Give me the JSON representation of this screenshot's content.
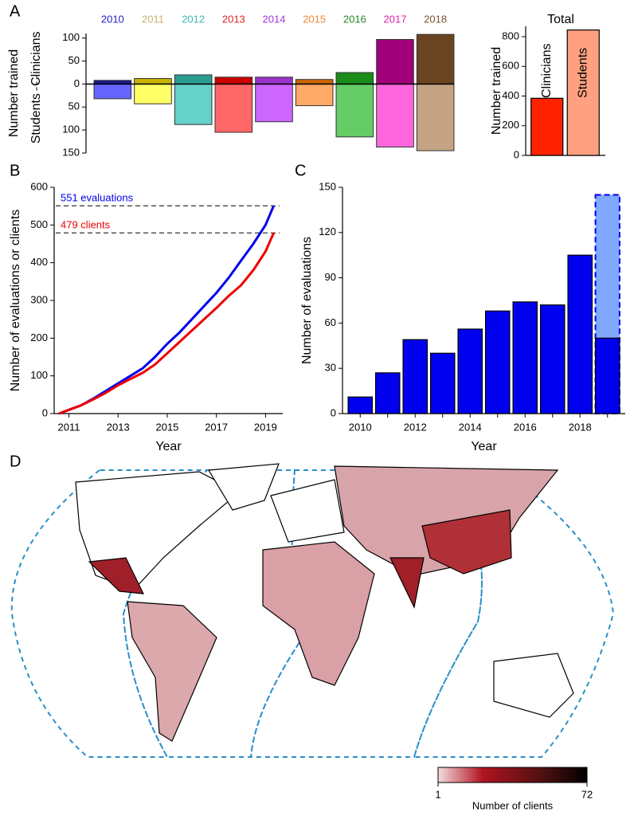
{
  "chart_data": [
    {
      "panel": "A",
      "type": "diverging_bar",
      "categories": [
        "2010",
        "2011",
        "2012",
        "2013",
        "2014",
        "2015",
        "2016",
        "2017",
        "2018"
      ],
      "label_colors": [
        "#2222cc",
        "#c8b070",
        "#3cb8b0",
        "#dd2222",
        "#aa33dd",
        "#ee8833",
        "#228822",
        "#dd22aa",
        "#7b5533"
      ],
      "series": [
        {
          "name": "Clinicians",
          "colors": [
            "#1a1a8c",
            "#c8b400",
            "#2a9d8f",
            "#cc0000",
            "#9933cc",
            "#cc6600",
            "#1a8c1a",
            "#a0007a",
            "#6b4522"
          ],
          "values": [
            8,
            12,
            20,
            15,
            15,
            10,
            25,
            97,
            108
          ]
        },
        {
          "name": "Students",
          "colors": [
            "#6666ff",
            "#ffff66",
            "#66d1c8",
            "#ff6666",
            "#cc66ff",
            "#ffaa66",
            "#66cc66",
            "#ff66dd",
            "#c4a484"
          ],
          "values": [
            -32,
            -43,
            -88,
            -105,
            -82,
            -47,
            -115,
            -137,
            -145
          ]
        }
      ],
      "ylabel": "Number trained",
      "ylim": [
        -150,
        110
      ],
      "yticks": [
        {
          "value": -150,
          "label": "150"
        },
        {
          "value": -100,
          "label": "100"
        },
        {
          "value": -50,
          "label": "50"
        },
        0,
        50,
        100
      ]
    },
    {
      "type": "bar",
      "title": "Total",
      "categories": [
        "Clinicians",
        "Students"
      ],
      "values": [
        385,
        845
      ],
      "colors": [
        "#ff2200",
        "#ffa080"
      ],
      "ylabel": "Number trained",
      "ylim": [
        0,
        870
      ],
      "yticks": [
        0,
        200,
        400,
        600,
        800
      ]
    },
    {
      "panel": "B",
      "type": "line",
      "xlabel": "Year",
      "ylabel": "Number of evaluations or clients",
      "xlim": [
        2010.4,
        2019.7
      ],
      "xticks": [
        2011,
        2013,
        2015,
        2017,
        2019
      ],
      "ylim": [
        0,
        600
      ],
      "yticks": [
        0,
        100,
        200,
        300,
        400,
        500,
        600
      ],
      "series": [
        {
          "color": "#0000ee",
          "x": [
            2010.6,
            2011,
            2011.5,
            2012,
            2012.5,
            2013,
            2013.5,
            2014,
            2014.5,
            2015,
            2015.5,
            2016,
            2016.5,
            2017,
            2017.5,
            2018,
            2018.5,
            2019,
            2019.33
          ],
          "values": [
            0,
            10,
            22,
            40,
            60,
            80,
            100,
            120,
            150,
            185,
            215,
            250,
            285,
            320,
            360,
            405,
            450,
            500,
            551
          ]
        },
        {
          "color": "#ee0000",
          "x": [
            2010.6,
            2011,
            2011.5,
            2012,
            2012.5,
            2013,
            2013.5,
            2014,
            2014.5,
            2015,
            2015.5,
            2016,
            2016.5,
            2017,
            2017.5,
            2018,
            2018.5,
            2019,
            2019.33
          ],
          "values": [
            0,
            10,
            22,
            38,
            55,
            75,
            92,
            108,
            130,
            160,
            190,
            220,
            250,
            280,
            312,
            340,
            380,
            430,
            479
          ]
        }
      ],
      "annotations": [
        {
          "text": "551 evaluations",
          "y": 551,
          "color": "#0000ee"
        },
        {
          "text": "479 clients",
          "y": 479,
          "color": "#ee0000"
        }
      ]
    },
    {
      "panel": "C",
      "type": "bar",
      "xlabel": "Year",
      "ylabel": "Number of evaluations",
      "categories": [
        "2010",
        null,
        "2012",
        null,
        "2014",
        null,
        "2016",
        null,
        "2018",
        null
      ],
      "series": [
        {
          "color": "#0000ee",
          "values": [
            11,
            27,
            49,
            40,
            56,
            68,
            74,
            72,
            105,
            50
          ]
        },
        {
          "color": "#80a8ff",
          "dashed": true,
          "values": [
            null,
            null,
            null,
            null,
            null,
            null,
            null,
            null,
            null,
            145
          ]
        }
      ],
      "ylim": [
        0,
        150
      ],
      "yticks": [
        0,
        30,
        60,
        90,
        120,
        150
      ]
    },
    {
      "panel": "D",
      "type": "map",
      "colorbar": {
        "min": 1,
        "max": 72,
        "label": "Number of clients"
      }
    }
  ]
}
